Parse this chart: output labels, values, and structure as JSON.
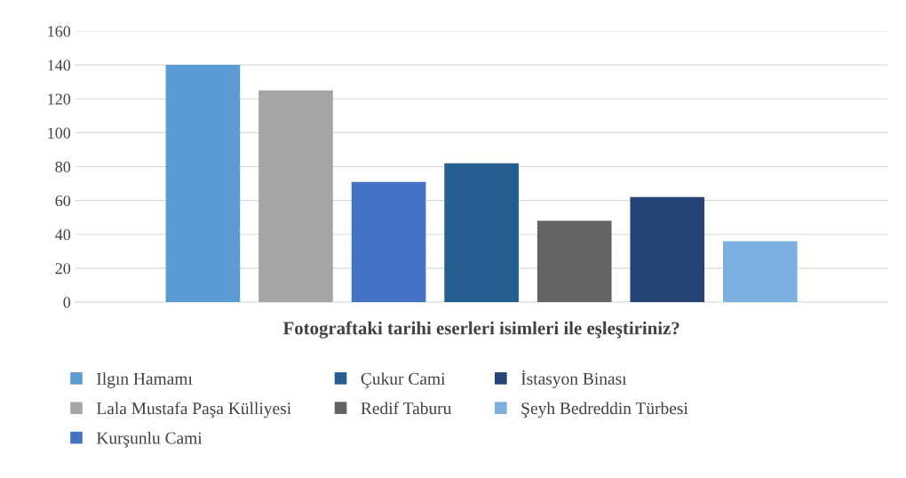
{
  "chart_data": {
    "type": "bar",
    "xlabel": "Fotograftaki tarihi eserleri isimleri ile eşleştiriniz?",
    "categories": [
      null
    ],
    "series": [
      {
        "name": "Ilgın Hamamı",
        "color": "#5b9bd5",
        "values": [
          140
        ]
      },
      {
        "name": "Lala Mustafa Paşa Külliyesi",
        "color": "#a5a5a5",
        "values": [
          125
        ]
      },
      {
        "name": "Kurşunlu Cami",
        "color": "#4472c4",
        "values": [
          71
        ]
      },
      {
        "name": "Çukur Cami",
        "color": "#255e91",
        "values": [
          82
        ]
      },
      {
        "name": "Redif Taburu",
        "color": "#636363",
        "values": [
          48
        ]
      },
      {
        "name": "İstasyon Binası",
        "color": "#264478",
        "values": [
          62
        ]
      },
      {
        "name": "Şeyh Bedreddin Türbesi",
        "color": "#7cafdd",
        "values": [
          36
        ]
      }
    ],
    "ylim": [
      0,
      160
    ],
    "yticks": [
      0,
      20,
      40,
      60,
      80,
      100,
      120,
      140,
      160
    ],
    "grid": "y",
    "legend": "bottom"
  }
}
